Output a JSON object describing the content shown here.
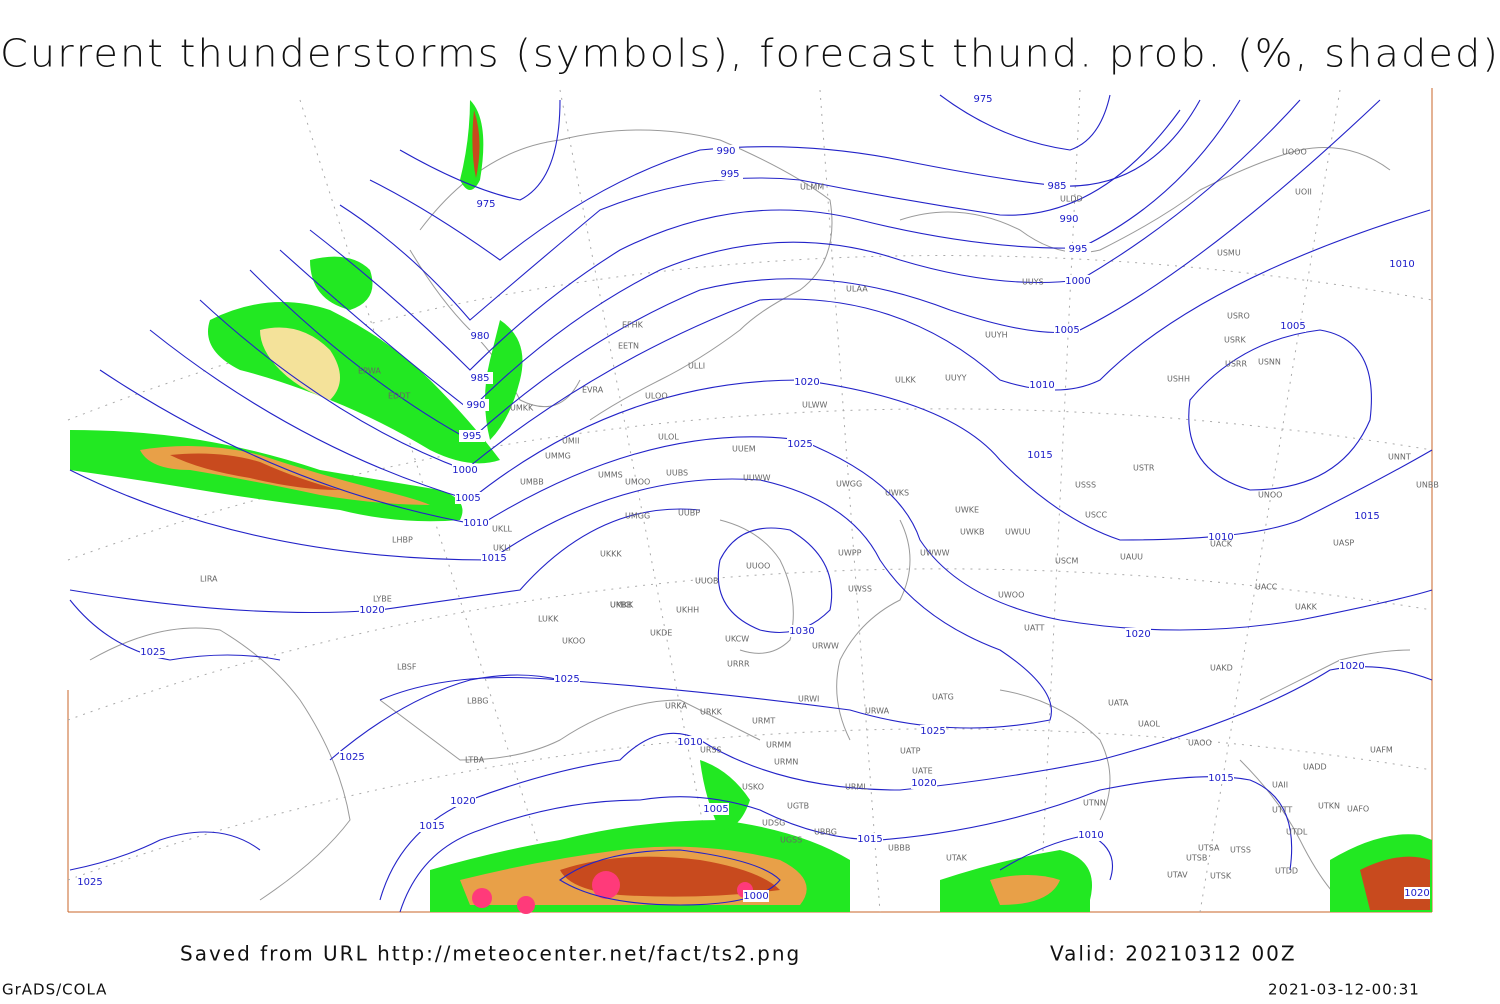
{
  "title": "Current thunderstorms (symbols), forecast thund. prob. (%, shaded)",
  "footer": {
    "source": "Saved from URL http://meteocenter.net/fact/ts2.png",
    "valid": "Valid: 20210312 00Z",
    "software": "GrADS/COLA",
    "timestamp": "2021-03-12-00:31"
  },
  "isobar_labels": [
    975,
    975,
    990,
    995,
    985,
    990,
    995,
    1000,
    1005,
    1010,
    1010,
    1005,
    980,
    985,
    990,
    995,
    1000,
    1005,
    1010,
    1015,
    1020,
    1025,
    1015,
    1015,
    1010,
    1020,
    1025,
    1030,
    1020,
    1020,
    1025,
    1025,
    1025,
    1010,
    1005,
    1020,
    1015,
    1020,
    1015,
    1015,
    1010,
    1000,
    1025,
    1020
  ],
  "stations": [
    "ULDD",
    "UUYS",
    "UUYH",
    "ULAA",
    "ULKK",
    "UUYY",
    "ULWW",
    "UUEM",
    "UUWW",
    "UWGG",
    "UWKS",
    "UWKE",
    "UWKB",
    "UWUU",
    "UWPP",
    "UWWW",
    "UUOO",
    "UUOB",
    "UWSS",
    "URWW",
    "URRR",
    "URWI",
    "UATG",
    "URWA",
    "UATT",
    "UWOO",
    "USSS",
    "USTR",
    "USCC",
    "USCM",
    "UAUU",
    "UACC",
    "UAKK",
    "UAKD",
    "UATA",
    "UAOL",
    "UAOO",
    "USHH",
    "USRR",
    "USNN",
    "USRK",
    "USRO",
    "USMU",
    "UOOO",
    "UOII",
    "UNNT",
    "UNBB",
    "UNOO",
    "UACK",
    "UASP",
    "UAFM",
    "UADD",
    "UAII",
    "UTTT",
    "UTKN",
    "UAFO",
    "UTDL",
    "UTDD",
    "UTSA",
    "UTSB",
    "UTSS",
    "UTAV",
    "UTSK",
    "UTAK",
    "UBBB",
    "UBBG",
    "UGTB",
    "UDSG",
    "UGSS",
    "UKKK",
    "UKBB",
    "UMMS",
    "UMBB",
    "UMGG",
    "UMMG",
    "UMKK",
    "UKLL",
    "UKLI",
    "UKOO",
    "UKDE",
    "UKHH",
    "UKCW",
    "LUKK",
    "LBSF",
    "LBBG",
    "LTBA",
    "LHBP",
    "LYBE",
    "LIRA",
    "EVRA",
    "EETN",
    "EFHK",
    "ULLI",
    "ULOO",
    "ULOL",
    "UMII",
    "UUBS",
    "UMOO",
    "UUBP",
    "URKA",
    "URKK",
    "URMT",
    "URMM",
    "URMN",
    "URML",
    "UATE",
    "UATP",
    "UTNN",
    "USKO",
    "URSS",
    "UMKK",
    "EPWA",
    "EDDT",
    "ULMM"
  ]
}
